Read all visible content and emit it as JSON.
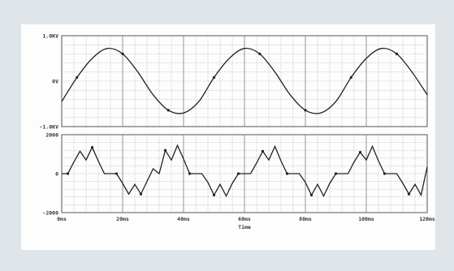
{
  "chart_data": [
    {
      "type": "line",
      "panel": "top",
      "ylim": [
        -1.0,
        1.0
      ],
      "y_tick_labels": [
        "1.0KV",
        "0V",
        "-1.0KV"
      ],
      "series": [
        {
          "x": [
            0,
            5,
            10,
            15,
            20,
            25,
            30,
            35,
            40,
            45,
            50,
            55,
            60,
            65,
            70,
            75,
            80,
            85,
            90,
            95,
            100,
            105,
            110,
            115,
            120
          ],
          "y": [
            -0.45,
            0.08,
            0.5,
            0.72,
            0.6,
            0.2,
            -0.3,
            -0.64,
            -0.7,
            -0.45,
            0.08,
            0.5,
            0.72,
            0.6,
            0.2,
            -0.3,
            -0.64,
            -0.7,
            -0.45,
            0.08,
            0.5,
            0.72,
            0.6,
            0.2,
            -0.3
          ]
        }
      ],
      "xlim": [
        0,
        120
      ]
    },
    {
      "type": "line",
      "panel": "bottom",
      "ylim": [
        -2000,
        2000
      ],
      "y_tick_labels": [
        "2000",
        "0",
        "-2000"
      ],
      "series": [
        {
          "x": [
            0,
            2,
            4,
            6,
            8,
            10,
            12,
            14,
            16,
            18,
            20,
            22,
            24,
            26,
            28,
            30,
            32,
            34,
            36,
            38,
            40,
            42,
            44,
            46,
            48,
            50,
            52,
            54,
            56,
            58,
            60,
            62,
            64,
            66,
            68,
            70,
            72,
            74,
            76,
            78,
            80,
            82,
            84,
            86,
            88,
            90,
            92,
            94,
            96,
            98,
            100,
            102,
            104,
            106,
            108,
            110,
            112,
            114,
            116,
            118,
            120
          ],
          "y": [
            0,
            0,
            600,
            1150,
            700,
            1350,
            650,
            0,
            0,
            0,
            -500,
            -1050,
            -550,
            -1050,
            -400,
            250,
            0,
            1200,
            700,
            1450,
            750,
            0,
            0,
            0,
            -450,
            -1100,
            -550,
            -1150,
            -500,
            0,
            0,
            0,
            550,
            1150,
            700,
            1400,
            650,
            0,
            0,
            0,
            -450,
            -1100,
            -550,
            -1150,
            -500,
            0,
            0,
            0,
            600,
            1100,
            700,
            1400,
            650,
            0,
            0,
            0,
            -500,
            -1050,
            -550,
            -1100,
            350
          ]
        }
      ],
      "xlim": [
        0,
        120
      ]
    }
  ],
  "x_axis": {
    "tick_labels": [
      "0ms",
      "20ms",
      "40ms",
      "60ms",
      "80ms",
      "100ms",
      "120ms"
    ],
    "title": "Time"
  },
  "style": {
    "background": "#dfe5e8",
    "paper": "#fdfdfd",
    "grid_color": "#8a8a8a",
    "trace_color": "#222222"
  }
}
